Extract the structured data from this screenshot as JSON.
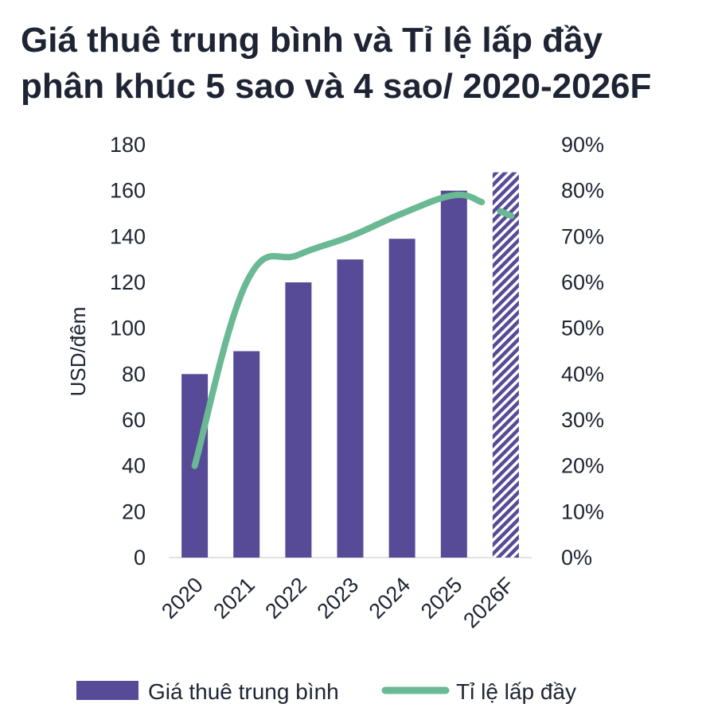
{
  "title_line1": "Giá thuê trung bình và Tỉ lệ lấp đầy",
  "title_line2": "phân khúc 5 sao và 4 sao/ 2020-2026F",
  "colors": {
    "bar": "#574a97",
    "line": "#6ab894",
    "text": "#1e2433",
    "axis": "#d9d9d9"
  },
  "chart_data": {
    "type": "bar",
    "categories": [
      "2020",
      "2021",
      "2022",
      "2023",
      "2024",
      "2025",
      "2026F"
    ],
    "series": [
      {
        "name": "Giá thuê trung bình",
        "type": "bar",
        "axis": "left",
        "values": [
          80,
          90,
          120,
          130,
          139,
          160,
          168
        ],
        "forecast_pattern": "hatched",
        "forecast_index": 6
      },
      {
        "name": "Tỉ lệ lấp đầy",
        "type": "line",
        "axis": "right",
        "values": [
          20,
          60,
          66,
          70,
          75,
          79,
          75
        ],
        "forecast_index": 6
      }
    ],
    "ylabel": "USD/đêm",
    "ylim": [
      0,
      180
    ],
    "yticks": [
      "0",
      "20",
      "40",
      "60",
      "80",
      "100",
      "120",
      "140",
      "160",
      "180"
    ],
    "y2lim": [
      0,
      90
    ],
    "y2ticks": [
      "0%",
      "10%",
      "20%",
      "30%",
      "40%",
      "50%",
      "60%",
      "70%",
      "80%",
      "90%"
    ],
    "legend_position": "bottom",
    "grid": false
  }
}
